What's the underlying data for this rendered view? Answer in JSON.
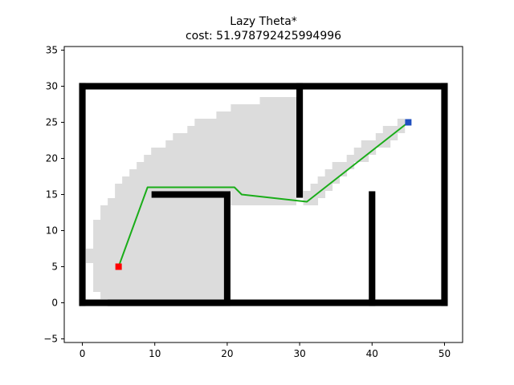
{
  "chart_data": {
    "type": "scatter",
    "title": "Lazy Theta*",
    "subtitle": "cost: 51.978792425994996",
    "xlabel": "",
    "ylabel": "",
    "xlim": [
      -2.5,
      52.5
    ],
    "ylim": [
      -5.5,
      35.5
    ],
    "xticks": [
      0,
      10,
      20,
      30,
      40,
      50
    ],
    "yticks": [
      -5,
      0,
      5,
      10,
      15,
      20,
      25,
      30,
      35
    ],
    "grid": false,
    "legend": "none",
    "colors": {
      "obstacle": "#000000",
      "explored": "#dcdcdc",
      "path": "#1aad19",
      "start": "#ff0000",
      "goal": "#1f4fbf"
    },
    "start": [
      5,
      5
    ],
    "goal": [
      45,
      25
    ],
    "path": [
      [
        5,
        5
      ],
      [
        9,
        16
      ],
      [
        21,
        16
      ],
      [
        22,
        15
      ],
      [
        31,
        14
      ],
      [
        45,
        25
      ]
    ],
    "obstacles": [
      {
        "from": [
          0,
          0
        ],
        "to": [
          50,
          0
        ]
      },
      {
        "from": [
          0,
          30
        ],
        "to": [
          50,
          30
        ]
      },
      {
        "from": [
          0,
          0
        ],
        "to": [
          0,
          30
        ]
      },
      {
        "from": [
          50,
          0
        ],
        "to": [
          50,
          30
        ]
      },
      {
        "from": [
          10,
          15
        ],
        "to": [
          20,
          15
        ]
      },
      {
        "from": [
          20,
          0
        ],
        "to": [
          20,
          15
        ]
      },
      {
        "from": [
          30,
          15
        ],
        "to": [
          30,
          30
        ]
      },
      {
        "from": [
          40,
          0
        ],
        "to": [
          40,
          15
        ]
      }
    ],
    "explored_columns": [
      [
        1,
        6,
        7
      ],
      [
        2,
        2,
        11
      ],
      [
        3,
        1,
        13
      ],
      [
        4,
        0,
        14
      ],
      [
        5,
        0,
        16
      ],
      [
        6,
        0,
        17
      ],
      [
        7,
        0,
        18
      ],
      [
        8,
        0,
        19
      ],
      [
        9,
        0,
        20
      ],
      [
        10,
        0,
        21
      ],
      [
        11,
        0,
        21
      ],
      [
        12,
        0,
        22
      ],
      [
        13,
        0,
        23
      ],
      [
        14,
        0,
        23
      ],
      [
        15,
        0,
        24
      ],
      [
        16,
        0,
        25
      ],
      [
        17,
        0,
        25
      ],
      [
        18,
        0,
        25
      ],
      [
        19,
        0,
        26
      ],
      [
        20,
        16,
        26
      ],
      [
        21,
        14,
        27
      ],
      [
        22,
        14,
        27
      ],
      [
        23,
        14,
        27
      ],
      [
        24,
        14,
        27
      ],
      [
        25,
        14,
        28
      ],
      [
        26,
        14,
        28
      ],
      [
        27,
        14,
        28
      ],
      [
        28,
        14,
        28
      ],
      [
        29,
        14,
        28
      ],
      [
        31,
        14,
        15
      ],
      [
        32,
        14,
        16
      ],
      [
        33,
        15,
        17
      ],
      [
        34,
        16,
        18
      ],
      [
        35,
        17,
        19
      ],
      [
        36,
        18,
        19
      ],
      [
        37,
        19,
        20
      ],
      [
        38,
        20,
        21
      ],
      [
        39,
        20,
        22
      ],
      [
        40,
        21,
        22
      ],
      [
        41,
        22,
        23
      ],
      [
        42,
        22,
        24
      ],
      [
        43,
        23,
        24
      ],
      [
        44,
        24,
        25
      ]
    ]
  }
}
